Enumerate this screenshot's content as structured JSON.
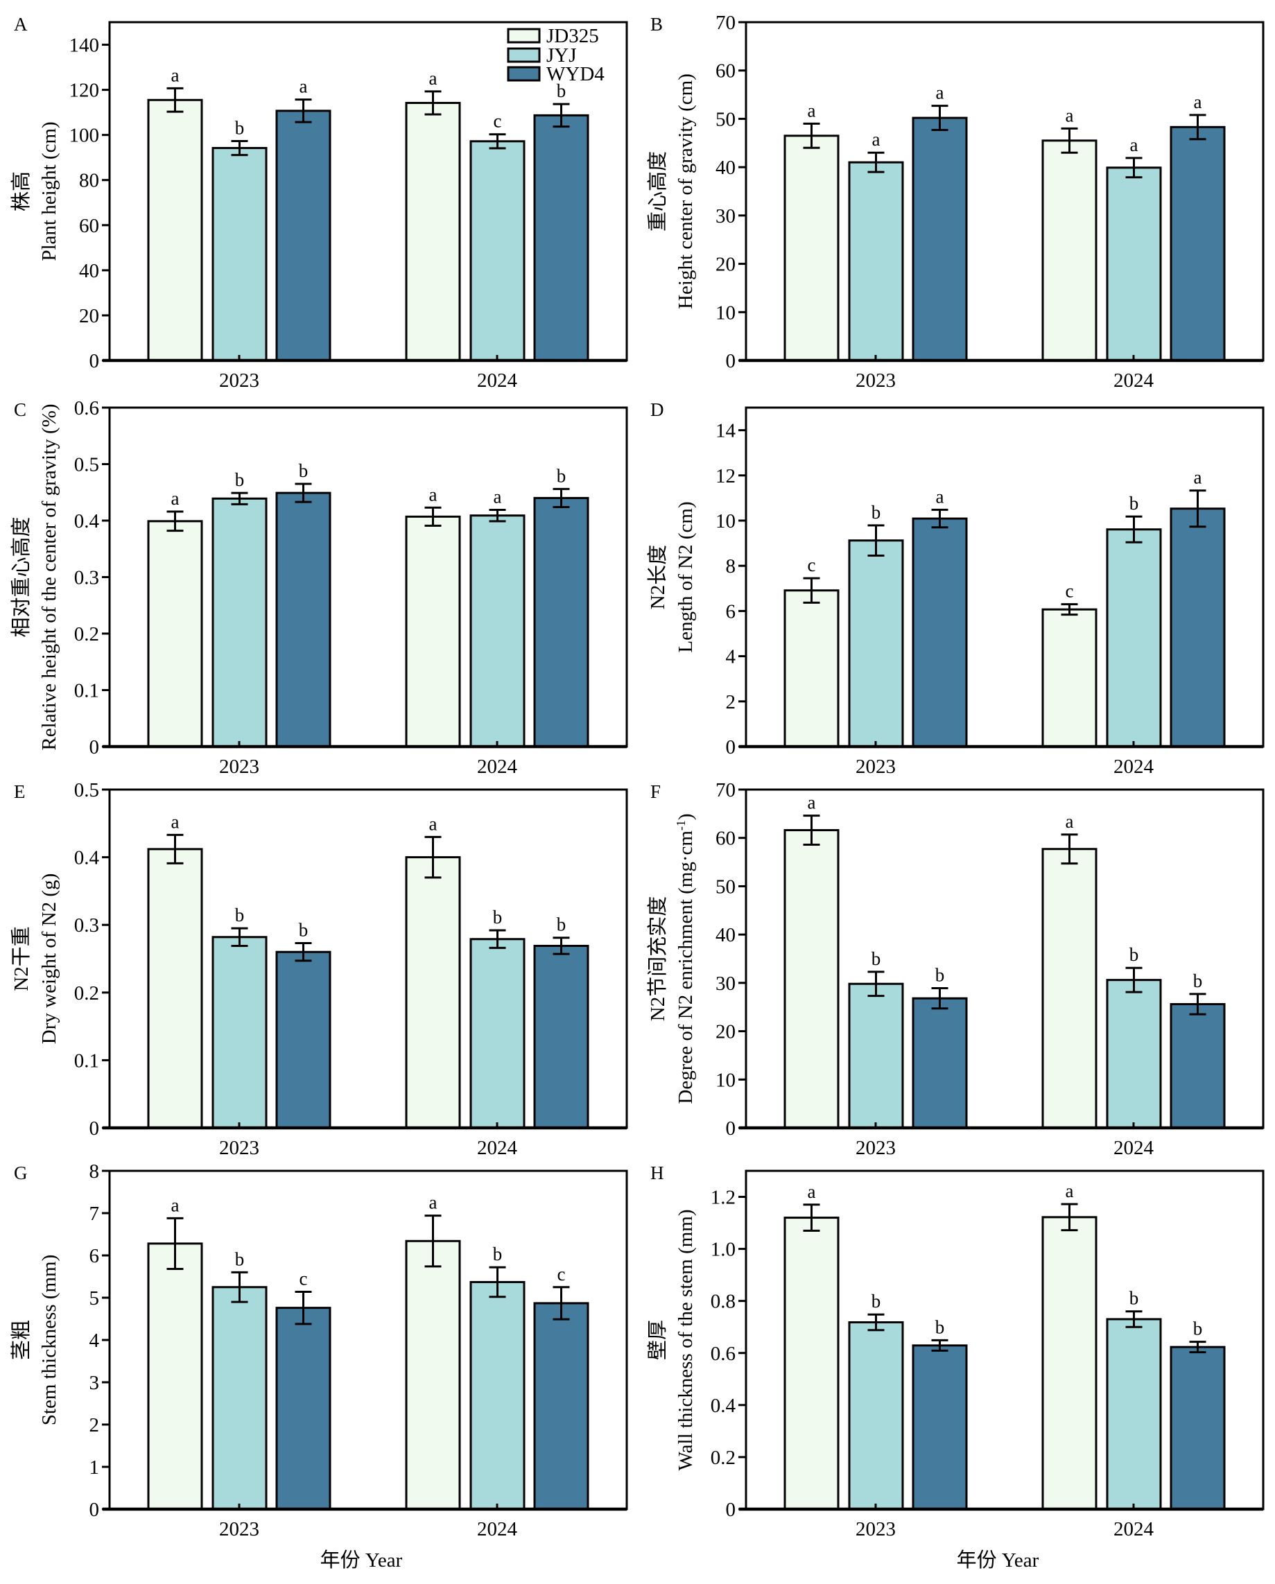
{
  "colors": {
    "JD325": "#f1faee",
    "JYJ": "#a8dadc",
    "WYD4": "#457b9d",
    "axis": "#000000"
  },
  "legend": {
    "entries": [
      "JD325",
      "JYJ",
      "WYD4"
    ]
  },
  "shared_xlabel": "年份 Year",
  "chart_data": [
    {
      "panel": "A",
      "type": "bar",
      "categories": [
        "2023",
        "2024"
      ],
      "ylabel_cn": "株高",
      "ylabel_en": "Plant height (cm)",
      "ylim": [
        0,
        150
      ],
      "yticks": [
        0,
        20,
        40,
        60,
        80,
        100,
        120,
        140
      ],
      "ytick_labels": [
        "0",
        "20",
        "40",
        "60",
        "80",
        "100",
        "120",
        "140"
      ],
      "series": [
        {
          "name": "JD325",
          "values": [
            115.5,
            114.2
          ],
          "errors": [
            5.2,
            5.1
          ],
          "letters": [
            "a",
            "a"
          ]
        },
        {
          "name": "JYJ",
          "values": [
            94.2,
            97.2
          ],
          "errors": [
            3.1,
            3.1
          ],
          "letters": [
            "b",
            "c"
          ]
        },
        {
          "name": "WYD4",
          "values": [
            110.7,
            108.7
          ],
          "errors": [
            5.0,
            5.0
          ],
          "letters": [
            "a",
            "b"
          ]
        }
      ],
      "legend": true
    },
    {
      "panel": "B",
      "type": "bar",
      "categories": [
        "2023",
        "2024"
      ],
      "ylabel_cn": "重心高度",
      "ylabel_en": "Height center of gravity (cm)",
      "ylim": [
        0,
        70
      ],
      "yticks": [
        0,
        10,
        20,
        30,
        40,
        50,
        60,
        70
      ],
      "ytick_labels": [
        "0",
        "10",
        "20",
        "30",
        "40",
        "50",
        "60",
        "70"
      ],
      "series": [
        {
          "name": "JD325",
          "values": [
            46.5,
            45.5
          ],
          "errors": [
            2.5,
            2.5
          ],
          "letters": [
            "a",
            "a"
          ]
        },
        {
          "name": "JYJ",
          "values": [
            41.0,
            39.9
          ],
          "errors": [
            2.0,
            2.0
          ],
          "letters": [
            "a",
            "a"
          ]
        },
        {
          "name": "WYD4",
          "values": [
            50.2,
            48.3
          ],
          "errors": [
            2.5,
            2.5
          ],
          "letters": [
            "a",
            "a"
          ]
        }
      ]
    },
    {
      "panel": "C",
      "type": "bar",
      "categories": [
        "2023",
        "2024"
      ],
      "ylabel_cn": "相对重心高度",
      "ylabel_en": "Relative height of the center of gravity (%)",
      "ylim": [
        0,
        0.6
      ],
      "yticks": [
        0,
        0.1,
        0.2,
        0.3,
        0.4,
        0.5,
        0.6
      ],
      "ytick_labels": [
        "0",
        "0.1",
        "0.2",
        "0.3",
        "0.4",
        "0.5",
        "0.6"
      ],
      "series": [
        {
          "name": "JD325",
          "values": [
            0.399,
            0.407
          ],
          "errors": [
            0.017,
            0.016
          ],
          "letters": [
            "a",
            "a"
          ]
        },
        {
          "name": "JYJ",
          "values": [
            0.439,
            0.409
          ],
          "errors": [
            0.01,
            0.01
          ],
          "letters": [
            "b",
            "a"
          ]
        },
        {
          "name": "WYD4",
          "values": [
            0.449,
            0.44
          ],
          "errors": [
            0.016,
            0.016
          ],
          "letters": [
            "b",
            "b"
          ]
        }
      ]
    },
    {
      "panel": "D",
      "type": "bar",
      "categories": [
        "2023",
        "2024"
      ],
      "ylabel_cn": "N2长度",
      "ylabel_en": "Length of N2 (cm)",
      "ylim": [
        0,
        15
      ],
      "yticks": [
        0,
        2,
        4,
        6,
        8,
        10,
        12,
        14
      ],
      "ytick_labels": [
        "0",
        "2",
        "4",
        "6",
        "8",
        "10",
        "12",
        "14"
      ],
      "series": [
        {
          "name": "JD325",
          "values": [
            6.91,
            6.07
          ],
          "errors": [
            0.54,
            0.23
          ],
          "letters": [
            "c",
            "c"
          ]
        },
        {
          "name": "JYJ",
          "values": [
            9.12,
            9.61
          ],
          "errors": [
            0.67,
            0.57
          ],
          "letters": [
            "b",
            "b"
          ]
        },
        {
          "name": "WYD4",
          "values": [
            10.09,
            10.53
          ],
          "errors": [
            0.39,
            0.8
          ],
          "letters": [
            "a",
            "a"
          ]
        }
      ]
    },
    {
      "panel": "E",
      "type": "bar",
      "categories": [
        "2023",
        "2024"
      ],
      "ylabel_cn": "N2干重",
      "ylabel_en": "Dry weight of N2 (g)",
      "ylim": [
        0,
        0.5
      ],
      "yticks": [
        0,
        0.1,
        0.2,
        0.3,
        0.4,
        0.5
      ],
      "ytick_labels": [
        "0",
        "0.1",
        "0.2",
        "0.3",
        "0.4",
        "0.5"
      ],
      "series": [
        {
          "name": "JD325",
          "values": [
            0.412,
            0.4
          ],
          "errors": [
            0.021,
            0.03
          ],
          "letters": [
            "a",
            "a"
          ]
        },
        {
          "name": "JYJ",
          "values": [
            0.282,
            0.279
          ],
          "errors": [
            0.013,
            0.013
          ],
          "letters": [
            "b",
            "b"
          ]
        },
        {
          "name": "WYD4",
          "values": [
            0.26,
            0.269
          ],
          "errors": [
            0.013,
            0.012
          ],
          "letters": [
            "b",
            "b"
          ]
        }
      ]
    },
    {
      "panel": "F",
      "type": "bar",
      "categories": [
        "2023",
        "2024"
      ],
      "ylabel_cn": "N2节间充实度",
      "ylabel_en": "Degree of N2 enrichment (mg·cm",
      "ylabel_en_sup": "-1",
      "ylabel_en_end": ")",
      "ylim": [
        0,
        70
      ],
      "yticks": [
        0,
        10,
        20,
        30,
        40,
        50,
        60,
        70
      ],
      "ytick_labels": [
        "0",
        "10",
        "20",
        "30",
        "40",
        "50",
        "60",
        "70"
      ],
      "series": [
        {
          "name": "JD325",
          "values": [
            61.6,
            57.7
          ],
          "errors": [
            3.0,
            3.0
          ],
          "letters": [
            "a",
            "a"
          ]
        },
        {
          "name": "JYJ",
          "values": [
            29.8,
            30.6
          ],
          "errors": [
            2.5,
            2.5
          ],
          "letters": [
            "b",
            "b"
          ]
        },
        {
          "name": "WYD4",
          "values": [
            26.8,
            25.6
          ],
          "errors": [
            2.1,
            2.1
          ],
          "letters": [
            "b",
            "b"
          ]
        }
      ]
    },
    {
      "panel": "G",
      "type": "bar",
      "categories": [
        "2023",
        "2024"
      ],
      "ylabel_cn": "茎粗",
      "ylabel_en": "Stem thickness (mm)",
      "ylim": [
        0,
        8
      ],
      "yticks": [
        0,
        1,
        2,
        3,
        4,
        5,
        6,
        7,
        8
      ],
      "ytick_labels": [
        "0",
        "1",
        "2",
        "3",
        "4",
        "5",
        "6",
        "7",
        "8"
      ],
      "series": [
        {
          "name": "JD325",
          "values": [
            6.28,
            6.34
          ],
          "errors": [
            0.6,
            0.6
          ],
          "letters": [
            "a",
            "a"
          ]
        },
        {
          "name": "JYJ",
          "values": [
            5.25,
            5.37
          ],
          "errors": [
            0.35,
            0.35
          ],
          "letters": [
            "b",
            "b"
          ]
        },
        {
          "name": "WYD4",
          "values": [
            4.76,
            4.87
          ],
          "errors": [
            0.38,
            0.38
          ],
          "letters": [
            "c",
            "c"
          ]
        }
      ],
      "xlabel": true
    },
    {
      "panel": "H",
      "type": "bar",
      "categories": [
        "2023",
        "2024"
      ],
      "ylabel_cn": "壁厚",
      "ylabel_en": "Wall thickness of the stem (mm)",
      "ylim": [
        0,
        1.3
      ],
      "yticks": [
        0,
        0.2,
        0.4,
        0.6,
        0.8,
        1.0,
        1.2
      ],
      "ytick_labels": [
        "0",
        "0.2",
        "0.4",
        "0.6",
        "0.8",
        "1.0",
        "1.2"
      ],
      "series": [
        {
          "name": "JD325",
          "values": [
            1.12,
            1.122
          ],
          "errors": [
            0.05,
            0.05
          ],
          "letters": [
            "a",
            "a"
          ]
        },
        {
          "name": "JYJ",
          "values": [
            0.718,
            0.73
          ],
          "errors": [
            0.03,
            0.03
          ],
          "letters": [
            "b",
            "b"
          ]
        },
        {
          "name": "WYD4",
          "values": [
            0.629,
            0.623
          ],
          "errors": [
            0.02,
            0.02
          ],
          "letters": [
            "b",
            "b"
          ]
        }
      ],
      "xlabel": true
    }
  ]
}
